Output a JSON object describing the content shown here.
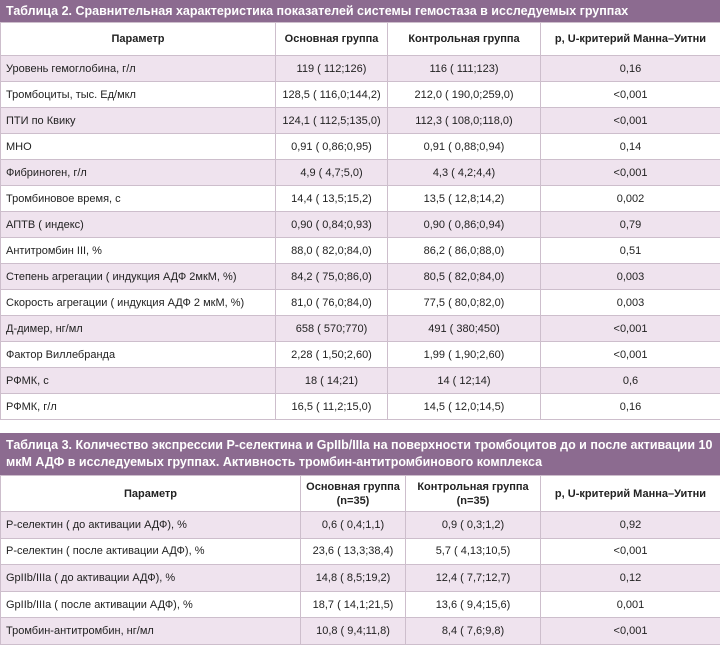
{
  "table2": {
    "title": "Таблица 2. Сравнительная характеристика показателей системы гемостаза в исследуемых группах",
    "header": [
      "Параметр",
      "Основная группа",
      "Контрольная группа",
      "p, U-критерий Манна–Уитни"
    ],
    "rows": [
      [
        "Уровень гемоглобина, г/л",
        "119 ( 112;126)",
        "116 ( 111;123)",
        "0,16"
      ],
      [
        "Тромбоциты, тыс. Ед/мкл",
        "128,5 ( 116,0;144,2)",
        "212,0 ( 190,0;259,0)",
        "<0,001"
      ],
      [
        "ПТИ по Квику",
        "124,1 ( 112,5;135,0)",
        "112,3 ( 108,0;118,0)",
        "<0,001"
      ],
      [
        "МНО",
        "0,91 ( 0,86;0,95)",
        "0,91 ( 0,88;0,94)",
        "0,14"
      ],
      [
        "Фибриноген, г/л",
        "4,9 ( 4,7;5,0)",
        "4,3 ( 4,2;4,4)",
        "<0,001"
      ],
      [
        "Тромбиновое время, с",
        "14,4 ( 13,5;15,2)",
        "13,5 ( 12,8;14,2)",
        "0,002"
      ],
      [
        "АПТВ ( индекс)",
        "0,90 ( 0,84;0,93)",
        "0,90 ( 0,86;0,94)",
        "0,79"
      ],
      [
        "Антитромбин III, %",
        "88,0 ( 82,0;84,0)",
        "86,2 ( 86,0;88,0)",
        "0,51"
      ],
      [
        "Степень агрегации ( индукция АДФ 2мкМ, %)",
        "84,2 ( 75,0;86,0)",
        "80,5 ( 82,0;84,0)",
        "0,003"
      ],
      [
        "Скорость агрегации ( индукция АДФ 2 мкМ, %)",
        "81,0 ( 76,0;84,0)",
        "77,5 ( 80,0;82,0)",
        "0,003"
      ],
      [
        "Д-димер, нг/мл",
        "658 ( 570;770)",
        "491 ( 380;450)",
        "<0,001"
      ],
      [
        "Фактор Виллебранда",
        "2,28 ( 1,50;2,60)",
        "1,99 ( 1,90;2,60)",
        "<0,001"
      ],
      [
        "РФМК, с",
        "18 ( 14;21)",
        "14 ( 12;14)",
        "0,6"
      ],
      [
        "РФМК, г/л",
        "16,5 ( 11,2;15,0)",
        "14,5 ( 12,0;14,5)",
        "0,16"
      ]
    ]
  },
  "table3": {
    "title": "Таблица 3. Количество экспрессии Р-селектина и GpIIb/IIIa на поверхности тромбоцитов до и после активации 10 мкМ АДФ в исследуемых группах. Активность тромбин-антитромбинового комплекса",
    "header": [
      [
        "Параметр"
      ],
      [
        "Основная группа",
        "(n=35)"
      ],
      [
        "Контрольная группа",
        "(n=35)"
      ],
      [
        "p, U-критерий Манна–Уитни"
      ]
    ],
    "rows": [
      [
        "Р-селектин ( до активации АДФ), %",
        "0,6 ( 0,4;1,1)",
        "0,9 ( 0,3;1,2)",
        "0,92"
      ],
      [
        "Р-селектин ( после активации АДФ), %",
        "23,6 ( 13,3;38,4)",
        "5,7 ( 4,13;10,5)",
        "<0,001"
      ],
      [
        "GpIIb/IIIa ( до активации АДФ), %",
        "14,8 ( 8,5;19,2)",
        "12,4 ( 7,7;12,7)",
        "0,12"
      ],
      [
        "GpIIb/IIIa ( после активации АДФ), %",
        "18,7 ( 14,1;21,5)",
        "13,6 ( 9,4;15,6)",
        "0,001"
      ],
      [
        "Тромбин-антитромбин, нг/мл",
        "10,8 ( 9,4;11,8)",
        "8,4 ( 7,6;9,8)",
        "<0,001"
      ]
    ]
  }
}
